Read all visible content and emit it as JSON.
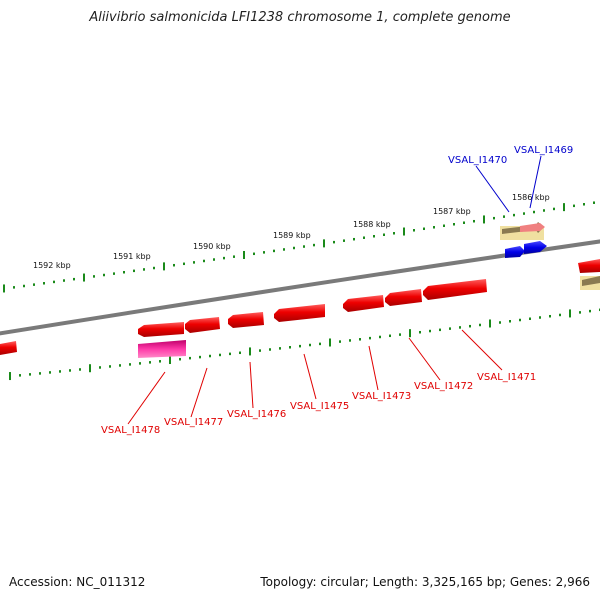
{
  "title": "Aliivibrio salmonicida LFI1238 chromosome 1, complete genome",
  "footer": {
    "accession": "Accession: NC_011312",
    "summary": "Topology: circular; Length: 3,325,165 bp; Genes: 2,966"
  },
  "scale_labels": [
    "1592 kbp",
    "1591 kbp",
    "1590 kbp",
    "1589 kbp",
    "1588 kbp",
    "1587 kbp",
    "1586 kbp"
  ],
  "genes_forward": [
    "VSAL_I1470",
    "VSAL_I1469"
  ],
  "genes_reverse": [
    "VSAL_I1478",
    "VSAL_I1477",
    "VSAL_I1476",
    "VSAL_I1475",
    "VSAL_I1473",
    "VSAL_I1472",
    "VSAL_I1471"
  ],
  "colors": {
    "backbone": "#808080",
    "tick": "#1a8a1a",
    "reverse_gene": "#e00000",
    "forward_gene": "#0000e0",
    "pseudogene": "#e0208a",
    "rna_box": "#f0e0a0",
    "rna_pink": "#f08080",
    "reverse_label": "#e00000",
    "forward_label": "#0000cc"
  }
}
